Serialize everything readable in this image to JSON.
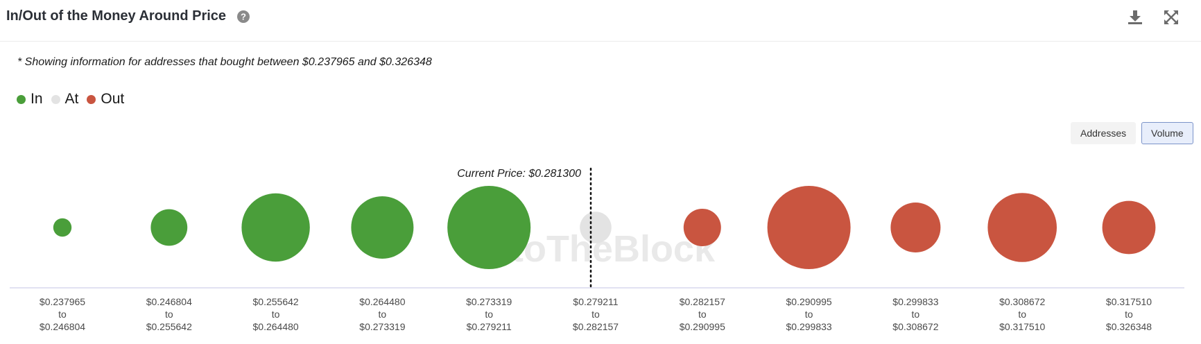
{
  "header": {
    "title": "In/Out of the Money Around Price",
    "help_icon": "question-circle-icon",
    "download_icon": "download-icon",
    "fullscreen_icon": "expand-arrows-icon"
  },
  "note": "* Showing information for addresses that bought between $0.237965 and $0.326348",
  "legend": [
    {
      "label": "In",
      "color": "#4a9e3a"
    },
    {
      "label": "At",
      "color": "#e3e3e3"
    },
    {
      "label": "Out",
      "color": "#c95540"
    }
  ],
  "toggles": {
    "addresses": "Addresses",
    "volume": "Volume",
    "active": "volume"
  },
  "watermark": "IntoTheBlock",
  "chart_data": {
    "type": "bubble",
    "current_price_label": "Current Price: $0.281300",
    "current_price": 0.2813,
    "size_metric": "Volume (relative bubble diameter, largest = 1.0)",
    "colors": {
      "In": "#4a9e3a",
      "At": "#e3e3e3",
      "Out": "#c95540"
    },
    "buckets": [
      {
        "from": "$0.237965",
        "to": "$0.246804",
        "status": "In",
        "relative_size": 0.22
      },
      {
        "from": "$0.246804",
        "to": "$0.255642",
        "status": "In",
        "relative_size": 0.44
      },
      {
        "from": "$0.255642",
        "to": "$0.264480",
        "status": "In",
        "relative_size": 0.82
      },
      {
        "from": "$0.264480",
        "to": "$0.273319",
        "status": "In",
        "relative_size": 0.75
      },
      {
        "from": "$0.273319",
        "to": "$0.279211",
        "status": "In",
        "relative_size": 1.0
      },
      {
        "from": "$0.279211",
        "to": "$0.282157",
        "status": "At",
        "relative_size": 0.38
      },
      {
        "from": "$0.282157",
        "to": "$0.290995",
        "status": "Out",
        "relative_size": 0.45
      },
      {
        "from": "$0.290995",
        "to": "$0.299833",
        "status": "Out",
        "relative_size": 1.0
      },
      {
        "from": "$0.299833",
        "to": "$0.308672",
        "status": "Out",
        "relative_size": 0.6
      },
      {
        "from": "$0.308672",
        "to": "$0.317510",
        "status": "Out",
        "relative_size": 0.83
      },
      {
        "from": "$0.317510",
        "to": "$0.326348",
        "status": "Out",
        "relative_size": 0.64
      }
    ],
    "range_connector": "to"
  }
}
